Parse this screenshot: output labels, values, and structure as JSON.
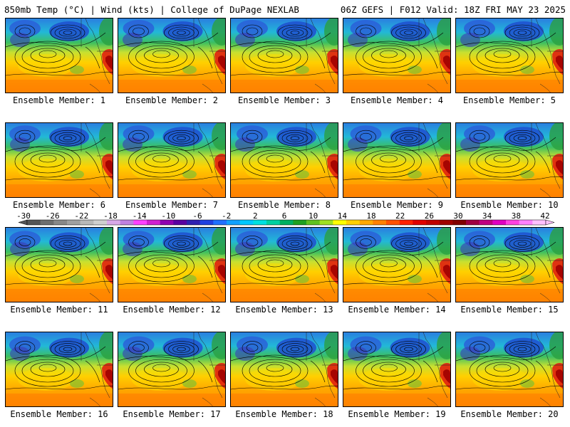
{
  "header": {
    "left": "850mb Temp (°C) | Wind (kts) | College of DuPage NEXLAB",
    "right": "06Z GEFS | F012 Valid: 18Z FRI MAY 23 2025"
  },
  "panels": [
    {
      "label": "Ensemble Member: 1"
    },
    {
      "label": "Ensemble Member: 2"
    },
    {
      "label": "Ensemble Member: 3"
    },
    {
      "label": "Ensemble Member: 4"
    },
    {
      "label": "Ensemble Member: 5"
    },
    {
      "label": "Ensemble Member: 6"
    },
    {
      "label": "Ensemble Member: 7"
    },
    {
      "label": "Ensemble Member: 8"
    },
    {
      "label": "Ensemble Member: 9"
    },
    {
      "label": "Ensemble Member: 10"
    },
    {
      "label": "Ensemble Member: 11"
    },
    {
      "label": "Ensemble Member: 12"
    },
    {
      "label": "Ensemble Member: 13"
    },
    {
      "label": "Ensemble Member: 14"
    },
    {
      "label": "Ensemble Member: 15"
    },
    {
      "label": "Ensemble Member: 16"
    },
    {
      "label": "Ensemble Member: 17"
    },
    {
      "label": "Ensemble Member: 18"
    },
    {
      "label": "Ensemble Member: 19"
    },
    {
      "label": "Ensemble Member: 20"
    }
  ],
  "colorbar": {
    "ticks": [
      "-30",
      "-26",
      "-22",
      "-18",
      "-14",
      "-10",
      "-6",
      "-2",
      "2",
      "6",
      "10",
      "14",
      "18",
      "22",
      "26",
      "30",
      "34",
      "38",
      "42"
    ],
    "colors": [
      "#555555",
      "#6e6e6e",
      "#888888",
      "#a0a0a0",
      "#b8b8b8",
      "#cfcfcf",
      "#d7a8e8",
      "#c080e0",
      "#ff40ff",
      "#d020d0",
      "#9000b0",
      "#5a00a0",
      "#3020b0",
      "#2040e0",
      "#2070ff",
      "#10a0ff",
      "#00c8ff",
      "#00e0e0",
      "#00d0a0",
      "#00b060",
      "#20a020",
      "#60c020",
      "#a0e020",
      "#ffff00",
      "#ffd000",
      "#ffa800",
      "#ff8000",
      "#ff5000",
      "#ff2000",
      "#e00000",
      "#c00000",
      "#a00000",
      "#800000",
      "#a00040",
      "#c00080",
      "#e000c0",
      "#ff40e0",
      "#ff80ff",
      "#ffc0ff"
    ]
  }
}
